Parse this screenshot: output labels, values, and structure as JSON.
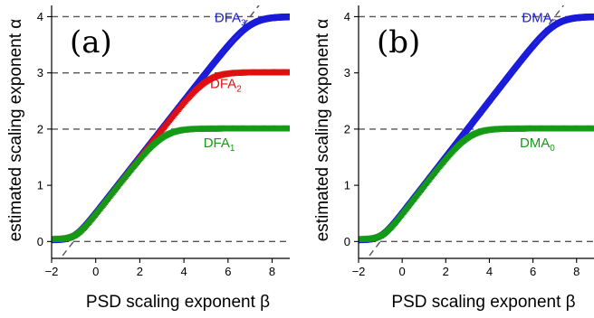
{
  "chart_data": [
    {
      "type": "scatter",
      "panel_label": "(a)",
      "xlabel": "PSD scaling exponent β",
      "ylabel": "estimated scaling exponent α",
      "xlim": [
        -2,
        8.8
      ],
      "ylim": [
        -0.3,
        4.2
      ],
      "xticks": [
        "−2",
        "0",
        "2",
        "4",
        "6",
        "8"
      ],
      "yticks": [
        "0",
        "1",
        "2",
        "3",
        "4"
      ],
      "reference_lines": {
        "horizontal": [
          0,
          2,
          3,
          4
        ],
        "diagonal": "α = (β + 1)/2",
        "style": "dashed",
        "color": "#555555"
      },
      "series": [
        {
          "name": "DFA",
          "sub": "3",
          "color": "#1a1adb",
          "marker": "circle",
          "plateau": 4
        },
        {
          "name": "DFA",
          "sub": "2",
          "color": "#e01010",
          "marker": "triangle",
          "plateau": 3
        },
        {
          "name": "DFA",
          "sub": "1",
          "color": "#159a15",
          "marker": "triangle",
          "plateau": 2
        }
      ]
    },
    {
      "type": "scatter",
      "panel_label": "(b)",
      "xlabel": "PSD scaling exponent β",
      "ylabel": "estimated scaling exponent α",
      "xlim": [
        -2,
        8.8
      ],
      "ylim": [
        -0.3,
        4.2
      ],
      "xticks": [
        "−2",
        "0",
        "2",
        "4",
        "6",
        "8"
      ],
      "yticks": [
        "0",
        "1",
        "2",
        "3",
        "4"
      ],
      "reference_lines": {
        "horizontal": [
          0,
          2,
          4
        ],
        "diagonal": "α = (β + 1)/2",
        "style": "dashed",
        "color": "#555555"
      },
      "series": [
        {
          "name": "DMA",
          "sub": "2",
          "color": "#1a1adb",
          "marker": "circle",
          "plateau": 4
        },
        {
          "name": "DMA",
          "sub": "0",
          "color": "#159a15",
          "marker": "triangle",
          "plateau": 2
        }
      ]
    }
  ]
}
